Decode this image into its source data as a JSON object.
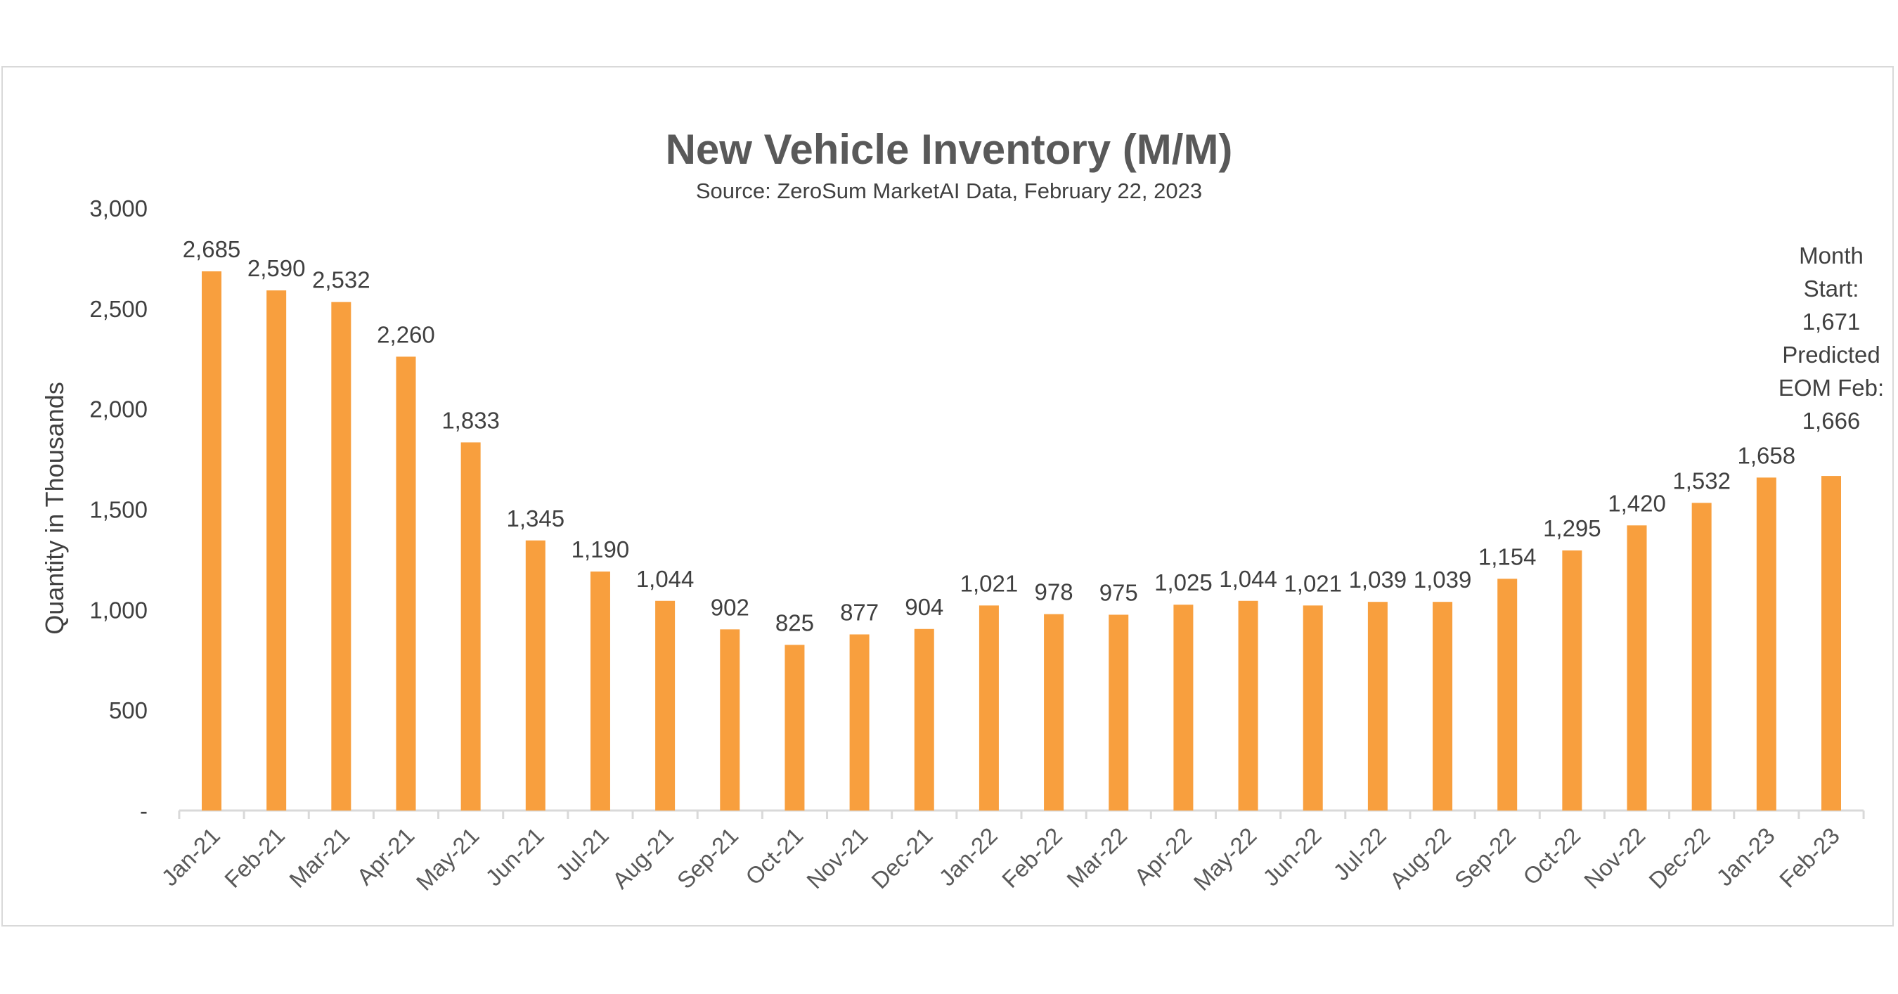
{
  "chart_data": {
    "type": "bar",
    "title": "New Vehicle Inventory (M/M)",
    "subtitle": "Source: ZeroSum MarketAI Data, February 22, 2023",
    "xlabel": "",
    "ylabel": "Quantity in Thousands",
    "ylim": [
      0,
      3000
    ],
    "yticks": [
      "-",
      "500",
      "1,000",
      "1,500",
      "2,000",
      "2,500",
      "3,000"
    ],
    "grid": false,
    "bar_color": "#F89F3E",
    "categories": [
      "Jan-21",
      "Feb-21",
      "Mar-21",
      "Apr-21",
      "May-21",
      "Jun-21",
      "Jul-21",
      "Aug-21",
      "Sep-21",
      "Oct-21",
      "Nov-21",
      "Dec-21",
      "Jan-22",
      "Feb-22",
      "Mar-22",
      "Apr-22",
      "May-22",
      "Jun-22",
      "Jul-22",
      "Aug-22",
      "Sep-22",
      "Oct-22",
      "Nov-22",
      "Dec-22",
      "Jan-23",
      "Feb-23"
    ],
    "values": [
      2685,
      2590,
      2532,
      2260,
      1833,
      1345,
      1190,
      1044,
      902,
      825,
      877,
      904,
      1021,
      978,
      975,
      1025,
      1044,
      1021,
      1039,
      1039,
      1154,
      1295,
      1420,
      1532,
      1658,
      1666
    ],
    "data_labels": [
      "2,685",
      "2,590",
      "2,532",
      "2,260",
      "1,833",
      "1,345",
      "1,190",
      "1,044",
      "902",
      "825",
      "877",
      "904",
      "1,021",
      "978",
      "975",
      "1,025",
      "1,044",
      "1,021",
      "1,039",
      "1,039",
      "1,154",
      "1,295",
      "1,420",
      "1,532",
      "1,658",
      ""
    ],
    "annotation": [
      "Month",
      "Start:",
      "1,671",
      "Predicted",
      "EOM Feb:",
      "1,666"
    ]
  }
}
